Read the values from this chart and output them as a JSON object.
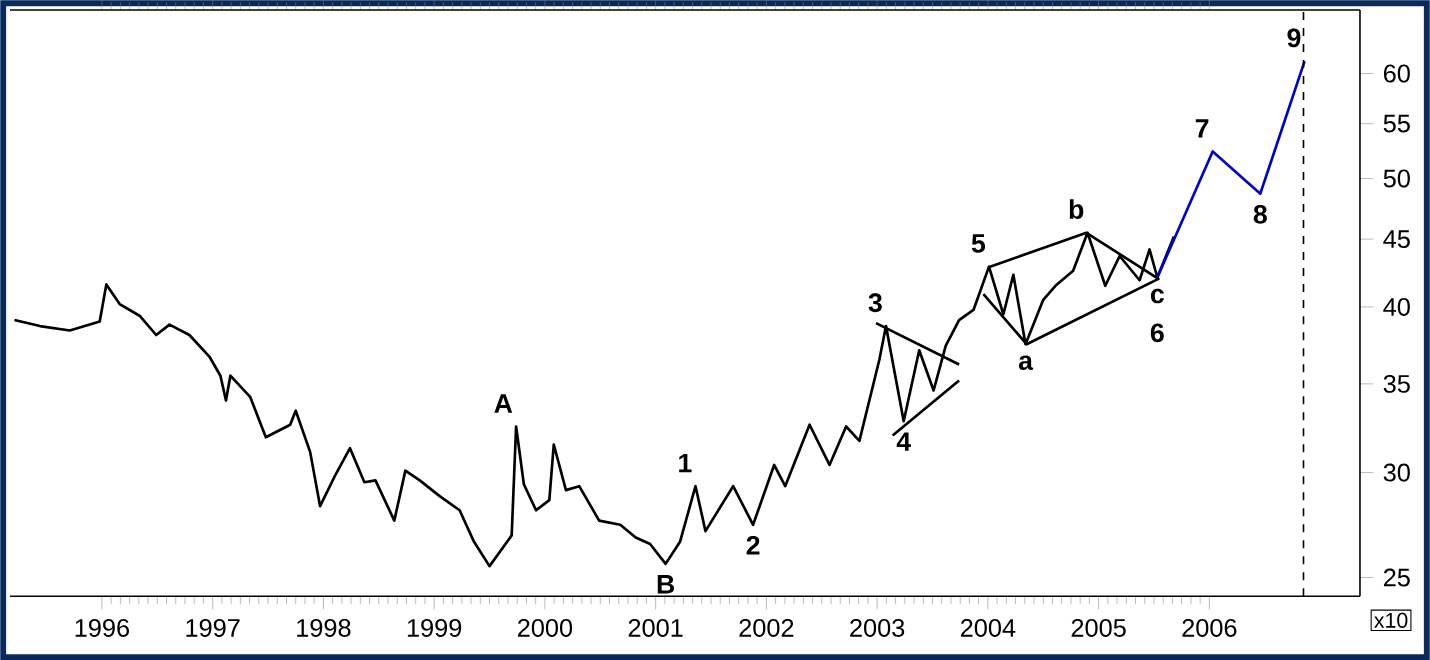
{
  "chart_data": {
    "type": "line",
    "log": "y",
    "xlim": [
      1995.17,
      2007.36
    ],
    "ylim": [
      24.2,
      67
    ],
    "xticks": [
      1996,
      1997,
      1998,
      1999,
      2000,
      2001,
      2002,
      2003,
      2004,
      2005,
      2006
    ],
    "yticks": [
      25,
      30,
      35,
      40,
      45,
      50,
      55,
      60
    ],
    "grid": false,
    "marker": "none",
    "series": [
      {
        "color": "#000000",
        "x": [
          1995.21,
          1995.44,
          1995.71,
          1995.98,
          1996.04,
          1996.16,
          1996.34,
          1996.49,
          1996.61,
          1996.79,
          1996.97,
          1997.07,
          1997.12,
          1997.16,
          1997.34,
          1997.48,
          1997.7,
          1997.75,
          1997.88,
          1997.97,
          1998.11,
          1998.24,
          1998.37,
          1998.47,
          1998.64,
          1998.74,
          1998.87,
          1999.05,
          1999.23,
          1999.36,
          1999.5,
          1999.7,
          1999.74,
          1999.81,
          1999.92,
          2000.04,
          2000.08,
          2000.19,
          2000.31,
          2000.49,
          2000.68,
          2000.82,
          2000.95,
          2001.09,
          2001.22,
          2001.36,
          2001.45,
          2001.7,
          2001.88,
          2002.07,
          2002.17,
          2002.39,
          2002.57,
          2002.72,
          2002.84,
          2003.02,
          2003.08,
          2003.24,
          2003.38,
          2003.51,
          2003.62,
          2003.74,
          2003.87,
          2004.01,
          2004.14,
          2004.23,
          2004.34,
          2004.5,
          2004.61,
          2004.77,
          2004.9,
          2005.06,
          2005.19,
          2005.37,
          2005.46,
          2005.53,
          2005.68
        ],
        "values": [
          39.1,
          38.7,
          38.4,
          39.0,
          41.6,
          40.2,
          39.4,
          38.1,
          38.8,
          38.1,
          36.7,
          35.5,
          34.0,
          35.5,
          34.2,
          31.9,
          32.6,
          33.4,
          31.1,
          28.3,
          29.9,
          31.3,
          29.5,
          29.6,
          27.6,
          30.1,
          29.6,
          28.8,
          28.1,
          26.6,
          25.5,
          26.9,
          32.5,
          29.4,
          28.1,
          28.6,
          31.5,
          29.1,
          29.3,
          27.6,
          27.4,
          26.8,
          26.5,
          25.6,
          26.6,
          29.3,
          27.1,
          29.3,
          27.4,
          30.4,
          29.3,
          32.6,
          30.4,
          32.5,
          31.7,
          36.5,
          38.7,
          32.8,
          37.1,
          34.6,
          37.4,
          39.1,
          39.8,
          42.9,
          39.5,
          42.3,
          37.5,
          40.5,
          41.5,
          42.6,
          45.5,
          41.5,
          43.7,
          41.9,
          44.2,
          42.1,
          45.2
        ]
      },
      {
        "color": "#0000cc",
        "x": [
          2005.53,
          2006.03,
          2006.46,
          2006.86
        ],
        "values": [
          42.1,
          52.4,
          48.7,
          61.3
        ]
      },
      {
        "color": "#000000",
        "x": [
          2002.99,
          2003.74
        ],
        "values": [
          38.9,
          36.2
        ]
      },
      {
        "color": "#000000",
        "x": [
          2003.14,
          2003.74
        ],
        "values": [
          32.0,
          35.2
        ]
      },
      {
        "color": "#000000",
        "x": [
          2004.02,
          2004.89,
          2005.54,
          2004.35,
          2003.96
        ],
        "values": [
          42.9,
          45.5,
          42.0,
          37.5,
          40.9
        ]
      }
    ],
    "ref_lines": [
      {
        "axis": "x",
        "value": 2006.85,
        "color": "#000000",
        "line_style": "dashed"
      }
    ],
    "annotations": [
      {
        "text": "A",
        "x": 1999.74,
        "y": 32.5
      },
      {
        "text": "B",
        "x": 2001.09,
        "y": 25.6
      },
      {
        "text": "1",
        "x": 2001.36,
        "y": 29.3
      },
      {
        "text": "2",
        "x": 2001.88,
        "y": 27.4
      },
      {
        "text": "3",
        "x": 2003.08,
        "y": 38.7
      },
      {
        "text": "4",
        "x": 2003.24,
        "y": 32.8
      },
      {
        "text": "5",
        "x": 2004.01,
        "y": 42.9
      },
      {
        "text": "a",
        "x": 2004.34,
        "y": 37.5
      },
      {
        "text": "b",
        "x": 2004.9,
        "y": 45.5
      },
      {
        "text": "c",
        "x": 2005.53,
        "y": 42.1
      },
      {
        "text": "6",
        "x": 2005.53,
        "y": 42.1
      },
      {
        "text": "7",
        "x": 2006.03,
        "y": 52.4
      },
      {
        "text": "8",
        "x": 2006.46,
        "y": 48.7
      },
      {
        "text": "9",
        "x": 2006.86,
        "y": 61.3
      },
      "x10"
    ]
  }
}
